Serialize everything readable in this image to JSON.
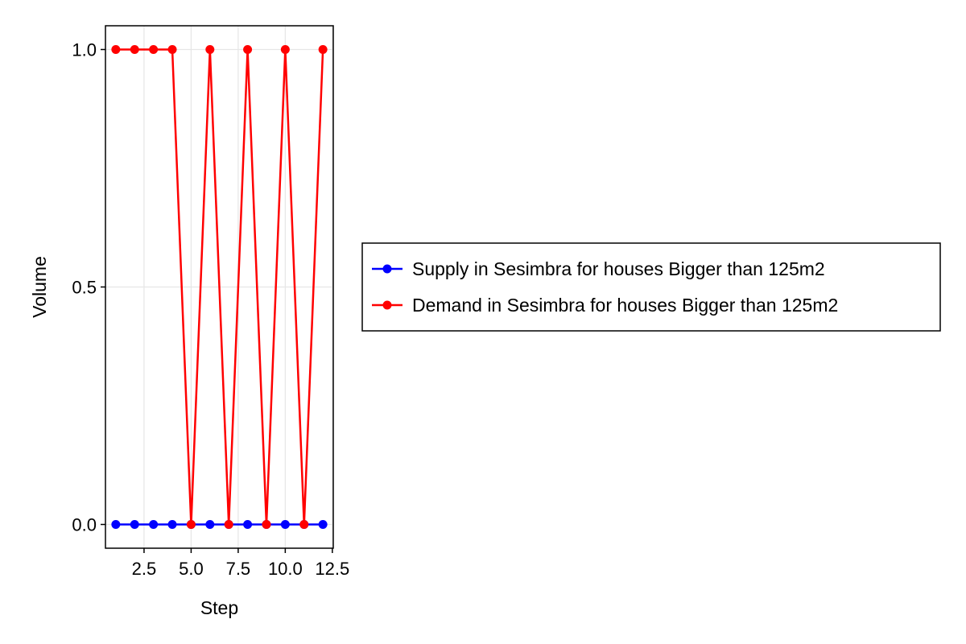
{
  "chart_data": {
    "type": "line",
    "xlabel": "Step",
    "ylabel": "Volume",
    "xlim": [
      0.45,
      12.55
    ],
    "ylim": [
      -0.05,
      1.05
    ],
    "xticks": [
      2.5,
      5.0,
      7.5,
      10.0,
      12.5
    ],
    "xtick_labels": [
      "2.5",
      "5.0",
      "7.5",
      "10.0",
      "12.5"
    ],
    "yticks": [
      0.0,
      0.5,
      1.0
    ],
    "ytick_labels": [
      "0.0",
      "0.5",
      "1.0"
    ],
    "grid": true,
    "legend_position": "right",
    "x": [
      1,
      2,
      3,
      4,
      5,
      6,
      7,
      8,
      9,
      10,
      11,
      12
    ],
    "series": [
      {
        "name": "Supply in Sesimbra for houses Bigger than 125m2",
        "color": "#0000ff",
        "values": [
          0,
          0,
          0,
          0,
          0,
          0,
          0,
          0,
          0,
          0,
          0,
          0
        ]
      },
      {
        "name": "Demand in Sesimbra for houses Bigger than 125m2",
        "color": "#ff0000",
        "values": [
          1,
          1,
          1,
          1,
          0,
          1,
          0,
          1,
          0,
          1,
          0,
          1
        ]
      }
    ]
  }
}
